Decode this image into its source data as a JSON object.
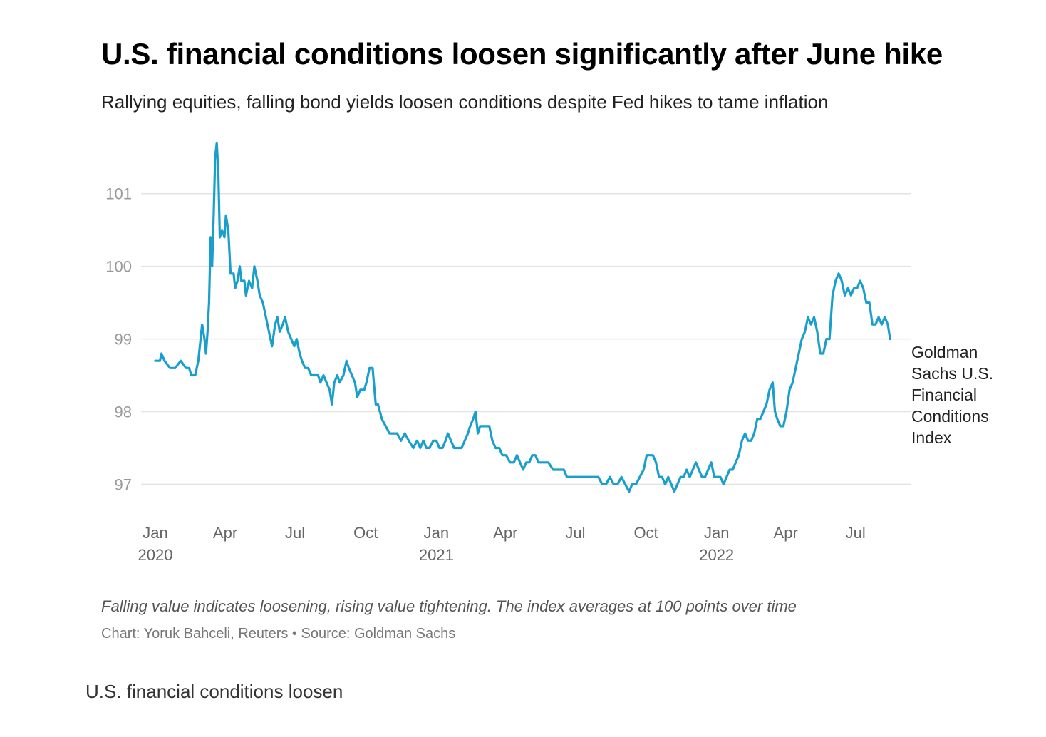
{
  "page": {
    "note": "Falling value indicates loosening, rising value tightening. The index averages at 100 points over time",
    "credit": "Chart: Yoruk Bahceli, Reuters • Source: Goldman Sachs",
    "caption": "U.S. financial conditions loosen"
  },
  "colors": {
    "line": "#1a9fcc",
    "grid": "#e3e3e3"
  },
  "chart_data": {
    "type": "line",
    "title": "U.S. financial conditions loosen significantly after June hike",
    "subtitle": "Rallying equities, falling bond yields loosen conditions despite Fed hikes to tame inflation",
    "xlabel": "",
    "ylabel": "",
    "ylim": [
      96.7,
      101.9
    ],
    "xlim": [
      "2020-01-01",
      "2022-08-25"
    ],
    "grid": true,
    "y_ticks": [
      97,
      98,
      99,
      100,
      101
    ],
    "x_ticks": [
      {
        "date": "2020-01-01",
        "label": "Jan",
        "year": "2020"
      },
      {
        "date": "2020-04-01",
        "label": "Apr",
        "year": ""
      },
      {
        "date": "2020-07-01",
        "label": "Jul",
        "year": ""
      },
      {
        "date": "2020-10-01",
        "label": "Oct",
        "year": ""
      },
      {
        "date": "2021-01-01",
        "label": "Jan",
        "year": "2021"
      },
      {
        "date": "2021-04-01",
        "label": "Apr",
        "year": ""
      },
      {
        "date": "2021-07-01",
        "label": "Jul",
        "year": ""
      },
      {
        "date": "2021-10-01",
        "label": "Oct",
        "year": ""
      },
      {
        "date": "2022-01-01",
        "label": "Jan",
        "year": "2022"
      },
      {
        "date": "2022-04-01",
        "label": "Apr",
        "year": ""
      },
      {
        "date": "2022-07-01",
        "label": "Jul",
        "year": ""
      }
    ],
    "series": [
      {
        "name": "Goldman Sachs U.S. Financial Conditions Index",
        "points": [
          [
            "2020-01-01",
            98.7
          ],
          [
            "2020-01-07",
            98.7
          ],
          [
            "2020-01-09",
            98.8
          ],
          [
            "2020-01-13",
            98.7
          ],
          [
            "2020-01-20",
            98.6
          ],
          [
            "2020-01-27",
            98.6
          ],
          [
            "2020-02-03",
            98.7
          ],
          [
            "2020-02-10",
            98.6
          ],
          [
            "2020-02-14",
            98.6
          ],
          [
            "2020-02-17",
            98.5
          ],
          [
            "2020-02-22",
            98.5
          ],
          [
            "2020-02-26",
            98.7
          ],
          [
            "2020-03-02",
            99.2
          ],
          [
            "2020-03-05",
            99.0
          ],
          [
            "2020-03-07",
            98.8
          ],
          [
            "2020-03-09",
            99.1
          ],
          [
            "2020-03-11",
            99.5
          ],
          [
            "2020-03-13",
            100.4
          ],
          [
            "2020-03-15",
            100.0
          ],
          [
            "2020-03-17",
            100.7
          ],
          [
            "2020-03-19",
            101.5
          ],
          [
            "2020-03-21",
            101.7
          ],
          [
            "2020-03-23",
            101.3
          ],
          [
            "2020-03-25",
            100.4
          ],
          [
            "2020-03-28",
            100.5
          ],
          [
            "2020-03-31",
            100.4
          ],
          [
            "2020-04-02",
            100.7
          ],
          [
            "2020-04-05",
            100.5
          ],
          [
            "2020-04-08",
            99.9
          ],
          [
            "2020-04-12",
            99.9
          ],
          [
            "2020-04-14",
            99.7
          ],
          [
            "2020-04-17",
            99.8
          ],
          [
            "2020-04-20",
            100.0
          ],
          [
            "2020-04-22",
            99.8
          ],
          [
            "2020-04-26",
            99.8
          ],
          [
            "2020-04-28",
            99.6
          ],
          [
            "2020-05-02",
            99.8
          ],
          [
            "2020-05-06",
            99.7
          ],
          [
            "2020-05-09",
            100.0
          ],
          [
            "2020-05-13",
            99.8
          ],
          [
            "2020-05-16",
            99.6
          ],
          [
            "2020-05-20",
            99.5
          ],
          [
            "2020-05-24",
            99.3
          ],
          [
            "2020-05-28",
            99.1
          ],
          [
            "2020-06-01",
            98.9
          ],
          [
            "2020-06-05",
            99.2
          ],
          [
            "2020-06-08",
            99.3
          ],
          [
            "2020-06-11",
            99.1
          ],
          [
            "2020-06-15",
            99.2
          ],
          [
            "2020-06-18",
            99.3
          ],
          [
            "2020-06-22",
            99.1
          ],
          [
            "2020-06-26",
            99.0
          ],
          [
            "2020-06-30",
            98.9
          ],
          [
            "2020-07-03",
            99.0
          ],
          [
            "2020-07-07",
            98.8
          ],
          [
            "2020-07-10",
            98.7
          ],
          [
            "2020-07-14",
            98.6
          ],
          [
            "2020-07-18",
            98.6
          ],
          [
            "2020-07-22",
            98.5
          ],
          [
            "2020-07-26",
            98.5
          ],
          [
            "2020-07-31",
            98.5
          ],
          [
            "2020-08-03",
            98.4
          ],
          [
            "2020-08-07",
            98.5
          ],
          [
            "2020-08-11",
            98.4
          ],
          [
            "2020-08-15",
            98.3
          ],
          [
            "2020-08-18",
            98.1
          ],
          [
            "2020-08-21",
            98.4
          ],
          [
            "2020-08-25",
            98.5
          ],
          [
            "2020-08-28",
            98.4
          ],
          [
            "2020-09-02",
            98.5
          ],
          [
            "2020-09-06",
            98.7
          ],
          [
            "2020-09-09",
            98.6
          ],
          [
            "2020-09-13",
            98.5
          ],
          [
            "2020-09-17",
            98.4
          ],
          [
            "2020-09-20",
            98.2
          ],
          [
            "2020-09-24",
            98.3
          ],
          [
            "2020-09-29",
            98.3
          ],
          [
            "2020-10-02",
            98.4
          ],
          [
            "2020-10-06",
            98.6
          ],
          [
            "2020-10-10",
            98.6
          ],
          [
            "2020-10-14",
            98.1
          ],
          [
            "2020-10-17",
            98.1
          ],
          [
            "2020-10-22",
            97.9
          ],
          [
            "2020-10-27",
            97.8
          ],
          [
            "2020-11-01",
            97.7
          ],
          [
            "2020-11-05",
            97.7
          ],
          [
            "2020-11-11",
            97.7
          ],
          [
            "2020-11-16",
            97.6
          ],
          [
            "2020-11-21",
            97.7
          ],
          [
            "2020-11-26",
            97.6
          ],
          [
            "2020-12-02",
            97.5
          ],
          [
            "2020-12-07",
            97.6
          ],
          [
            "2020-12-11",
            97.5
          ],
          [
            "2020-12-15",
            97.6
          ],
          [
            "2020-12-19",
            97.5
          ],
          [
            "2020-12-23",
            97.5
          ],
          [
            "2020-12-28",
            97.6
          ],
          [
            "2021-01-01",
            97.6
          ],
          [
            "2021-01-05",
            97.5
          ],
          [
            "2021-01-09",
            97.5
          ],
          [
            "2021-01-13",
            97.6
          ],
          [
            "2021-01-16",
            97.7
          ],
          [
            "2021-01-20",
            97.6
          ],
          [
            "2021-01-24",
            97.5
          ],
          [
            "2021-01-29",
            97.5
          ],
          [
            "2021-02-03",
            97.5
          ],
          [
            "2021-02-07",
            97.6
          ],
          [
            "2021-02-11",
            97.7
          ],
          [
            "2021-02-14",
            97.8
          ],
          [
            "2021-02-18",
            97.9
          ],
          [
            "2021-02-21",
            98.0
          ],
          [
            "2021-02-24",
            97.7
          ],
          [
            "2021-02-27",
            97.8
          ],
          [
            "2021-03-03",
            97.8
          ],
          [
            "2021-03-07",
            97.8
          ],
          [
            "2021-03-11",
            97.8
          ],
          [
            "2021-03-15",
            97.6
          ],
          [
            "2021-03-19",
            97.5
          ],
          [
            "2021-03-24",
            97.5
          ],
          [
            "2021-03-28",
            97.4
          ],
          [
            "2021-04-02",
            97.4
          ],
          [
            "2021-04-07",
            97.3
          ],
          [
            "2021-04-12",
            97.3
          ],
          [
            "2021-04-16",
            97.4
          ],
          [
            "2021-04-20",
            97.3
          ],
          [
            "2021-04-24",
            97.2
          ],
          [
            "2021-04-28",
            97.3
          ],
          [
            "2021-05-02",
            97.3
          ],
          [
            "2021-05-06",
            97.4
          ],
          [
            "2021-05-10",
            97.4
          ],
          [
            "2021-05-14",
            97.3
          ],
          [
            "2021-05-18",
            97.3
          ],
          [
            "2021-05-22",
            97.3
          ],
          [
            "2021-05-27",
            97.3
          ],
          [
            "2021-06-02",
            97.2
          ],
          [
            "2021-06-07",
            97.2
          ],
          [
            "2021-06-11",
            97.2
          ],
          [
            "2021-06-16",
            97.2
          ],
          [
            "2021-06-20",
            97.1
          ],
          [
            "2021-06-25",
            97.1
          ],
          [
            "2021-07-01",
            97.1
          ],
          [
            "2021-07-06",
            97.1
          ],
          [
            "2021-07-11",
            97.1
          ],
          [
            "2021-07-16",
            97.1
          ],
          [
            "2021-07-21",
            97.1
          ],
          [
            "2021-07-26",
            97.1
          ],
          [
            "2021-07-31",
            97.1
          ],
          [
            "2021-08-05",
            97.0
          ],
          [
            "2021-08-10",
            97.0
          ],
          [
            "2021-08-15",
            97.1
          ],
          [
            "2021-08-20",
            97.0
          ],
          [
            "2021-08-25",
            97.0
          ],
          [
            "2021-08-30",
            97.1
          ],
          [
            "2021-09-04",
            97.0
          ],
          [
            "2021-09-09",
            96.9
          ],
          [
            "2021-09-13",
            97.0
          ],
          [
            "2021-09-18",
            97.0
          ],
          [
            "2021-09-23",
            97.1
          ],
          [
            "2021-09-28",
            97.2
          ],
          [
            "2021-10-02",
            97.4
          ],
          [
            "2021-10-06",
            97.4
          ],
          [
            "2021-10-10",
            97.4
          ],
          [
            "2021-10-14",
            97.3
          ],
          [
            "2021-10-18",
            97.1
          ],
          [
            "2021-10-22",
            97.1
          ],
          [
            "2021-10-26",
            97.0
          ],
          [
            "2021-10-30",
            97.1
          ],
          [
            "2021-11-03",
            97.0
          ],
          [
            "2021-11-07",
            96.9
          ],
          [
            "2021-11-11",
            97.0
          ],
          [
            "2021-11-15",
            97.1
          ],
          [
            "2021-11-19",
            97.1
          ],
          [
            "2021-11-23",
            97.2
          ],
          [
            "2021-11-27",
            97.1
          ],
          [
            "2021-12-01",
            97.2
          ],
          [
            "2021-12-05",
            97.3
          ],
          [
            "2021-12-09",
            97.2
          ],
          [
            "2021-12-13",
            97.1
          ],
          [
            "2021-12-17",
            97.1
          ],
          [
            "2021-12-21",
            97.2
          ],
          [
            "2021-12-25",
            97.3
          ],
          [
            "2021-12-29",
            97.1
          ],
          [
            "2022-01-02",
            97.1
          ],
          [
            "2022-01-06",
            97.1
          ],
          [
            "2022-01-10",
            97.0
          ],
          [
            "2022-01-14",
            97.1
          ],
          [
            "2022-01-18",
            97.2
          ],
          [
            "2022-01-22",
            97.2
          ],
          [
            "2022-01-26",
            97.3
          ],
          [
            "2022-01-30",
            97.4
          ],
          [
            "2022-02-03",
            97.6
          ],
          [
            "2022-02-07",
            97.7
          ],
          [
            "2022-02-11",
            97.6
          ],
          [
            "2022-02-15",
            97.6
          ],
          [
            "2022-02-19",
            97.7
          ],
          [
            "2022-02-23",
            97.9
          ],
          [
            "2022-02-27",
            97.9
          ],
          [
            "2022-03-03",
            98.0
          ],
          [
            "2022-03-07",
            98.1
          ],
          [
            "2022-03-11",
            98.3
          ],
          [
            "2022-03-15",
            98.4
          ],
          [
            "2022-03-18",
            98.0
          ],
          [
            "2022-03-21",
            97.9
          ],
          [
            "2022-03-25",
            97.8
          ],
          [
            "2022-03-29",
            97.8
          ],
          [
            "2022-04-02",
            98.0
          ],
          [
            "2022-04-06",
            98.3
          ],
          [
            "2022-04-10",
            98.4
          ],
          [
            "2022-04-14",
            98.6
          ],
          [
            "2022-04-18",
            98.8
          ],
          [
            "2022-04-22",
            99.0
          ],
          [
            "2022-04-26",
            99.1
          ],
          [
            "2022-04-30",
            99.3
          ],
          [
            "2022-05-04",
            99.2
          ],
          [
            "2022-05-08",
            99.3
          ],
          [
            "2022-05-12",
            99.1
          ],
          [
            "2022-05-16",
            98.8
          ],
          [
            "2022-05-20",
            98.8
          ],
          [
            "2022-05-24",
            99.0
          ],
          [
            "2022-05-28",
            99.0
          ],
          [
            "2022-06-01",
            99.6
          ],
          [
            "2022-06-05",
            99.8
          ],
          [
            "2022-06-09",
            99.9
          ],
          [
            "2022-06-13",
            99.8
          ],
          [
            "2022-06-17",
            99.6
          ],
          [
            "2022-06-21",
            99.7
          ],
          [
            "2022-06-25",
            99.6
          ],
          [
            "2022-06-29",
            99.7
          ],
          [
            "2022-07-03",
            99.7
          ],
          [
            "2022-07-07",
            99.8
          ],
          [
            "2022-07-11",
            99.7
          ],
          [
            "2022-07-15",
            99.5
          ],
          [
            "2022-07-19",
            99.5
          ],
          [
            "2022-07-23",
            99.2
          ],
          [
            "2022-07-27",
            99.2
          ],
          [
            "2022-07-31",
            99.3
          ],
          [
            "2022-08-04",
            99.2
          ],
          [
            "2022-08-08",
            99.3
          ],
          [
            "2022-08-12",
            99.2
          ],
          [
            "2022-08-15",
            99.0
          ]
        ]
      }
    ]
  }
}
